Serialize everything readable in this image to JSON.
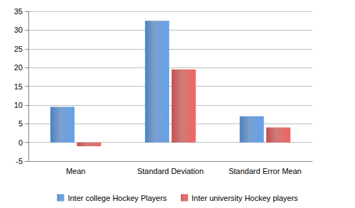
{
  "chart_data": {
    "type": "bar",
    "categories": [
      "Mean",
      "Standard Deviation",
      "Standard Error Mean"
    ],
    "series": [
      {
        "name": "Inter college Hockey Players",
        "color": "#4f81bd",
        "values": [
          9.5,
          32.5,
          7
        ]
      },
      {
        "name": "Inter university Hockey players",
        "color": "#c0504d",
        "values": [
          -1,
          19.5,
          4
        ]
      }
    ],
    "ylim": [
      -5,
      35
    ],
    "yticks": [
      -5,
      0,
      5,
      10,
      15,
      20,
      25,
      30,
      35
    ],
    "grid": true,
    "legend": "bottom"
  }
}
